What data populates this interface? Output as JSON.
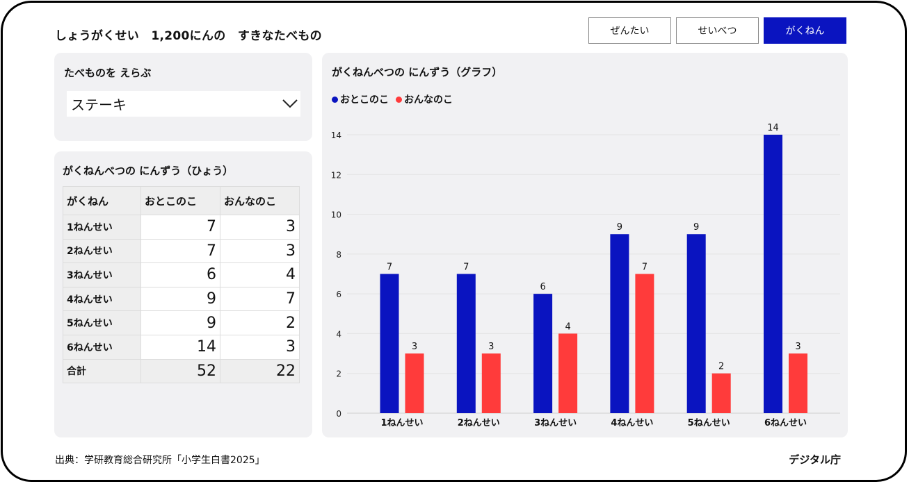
{
  "header": {
    "title": "しょうがくせい　1,200にんの　すきなたべもの",
    "tabs": [
      {
        "label": "ぜんたい",
        "active": false
      },
      {
        "label": "せいべつ",
        "active": false
      },
      {
        "label": "がくねん",
        "active": true
      }
    ]
  },
  "selector": {
    "heading": "たべものを えらぶ",
    "value": "ステーキ",
    "icon": "chevron-down-icon"
  },
  "table": {
    "heading": "がくねんべつの にんずう（ひょう）",
    "columns": [
      "がくねん",
      "おとこのこ",
      "おんなのこ"
    ],
    "rows": [
      {
        "grade": "1ねんせい",
        "boys": "7",
        "girls": "3"
      },
      {
        "grade": "2ねんせい",
        "boys": "7",
        "girls": "3"
      },
      {
        "grade": "3ねんせい",
        "boys": "6",
        "girls": "4"
      },
      {
        "grade": "4ねんせい",
        "boys": "9",
        "girls": "7"
      },
      {
        "grade": "5ねんせい",
        "boys": "9",
        "girls": "2"
      },
      {
        "grade": "6ねんせい",
        "boys": "14",
        "girls": "3"
      }
    ],
    "total": {
      "grade": "合計",
      "boys": "52",
      "girls": "22"
    }
  },
  "chart": {
    "heading": "がくねんべつの にんずう（グラフ）"
  },
  "chart_data": {
    "type": "bar",
    "categories": [
      "1ねんせい",
      "2ねんせい",
      "3ねんせい",
      "4ねんせい",
      "5ねんせい",
      "6ねんせい"
    ],
    "series": [
      {
        "name": "おとこのこ",
        "values": [
          7,
          7,
          6,
          9,
          9,
          14
        ],
        "color": "#0a14c0"
      },
      {
        "name": "おんなのこ",
        "values": [
          3,
          3,
          4,
          7,
          2,
          3
        ],
        "color": "#ff3b3b"
      }
    ],
    "title": "がくねんべつの にんずう（グラフ）",
    "xlabel": "",
    "ylabel": "",
    "ylim": [
      0,
      14
    ],
    "yticks": [
      0,
      2,
      4,
      6,
      8,
      10,
      12,
      14
    ],
    "grid": true,
    "legend": "top-left",
    "data_labels": true
  },
  "footer": {
    "source": "出典：学研教育総合研究所「小学生白書2025」",
    "brand": "デジタル庁"
  }
}
